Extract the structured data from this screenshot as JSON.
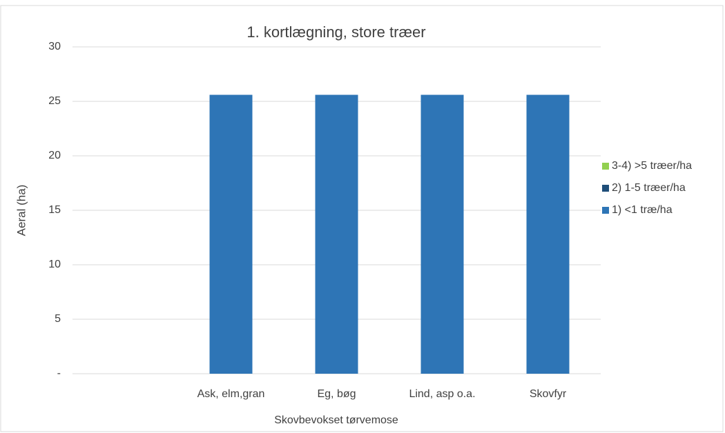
{
  "chart_data": {
    "type": "stacked_bar",
    "title": "1. kortlægning, store træer",
    "x_label": "Skovbevokset tørvemose",
    "y_label": "Aeral (ha)",
    "categories": [
      null,
      "Ask, elm,gran",
      "Eg, bøg",
      "Lind, asp o.a.",
      "Skovfyr"
    ],
    "series": [
      {
        "name": "1) <1 træ/ha",
        "color": "#2e75b6",
        "values": [
          null,
          25.6,
          25.6,
          25.6,
          25.6
        ]
      },
      {
        "name": "2) 1-5 træer/ha",
        "color": "#1f4e79",
        "values": [
          null,
          0,
          0,
          0,
          0
        ]
      },
      {
        "name": "3-4) >5 træer/ha",
        "color": "#92d050",
        "values": [
          null,
          0,
          0,
          0,
          0
        ]
      }
    ],
    "ylim": [
      0,
      30
    ],
    "yticks": [
      {
        "value": 0,
        "label": "-"
      },
      5,
      10,
      15,
      20,
      25,
      30
    ],
    "grid": true,
    "legend": "right"
  }
}
